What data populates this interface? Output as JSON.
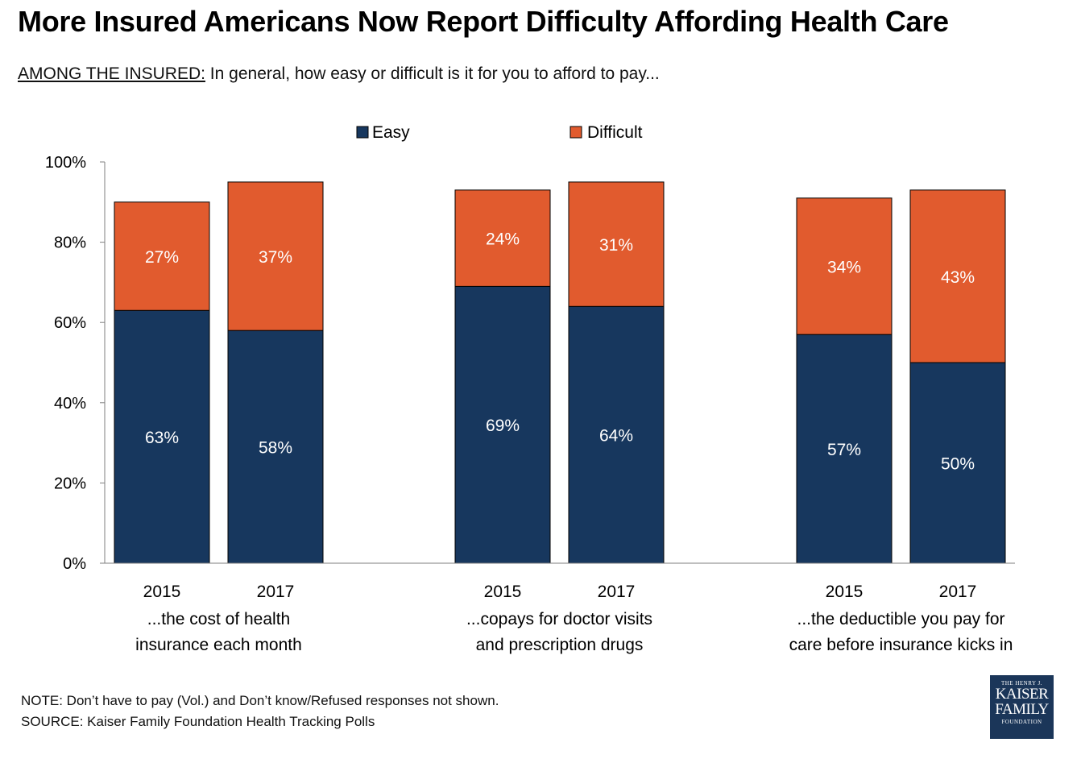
{
  "title": "More Insured Americans Now Report Difficulty Affording Health Care",
  "subtitle_prefix": "AMONG THE INSURED:",
  "subtitle_text": " In general, how easy or difficult is it for you to afford to pay...",
  "note": "NOTE: Don’t have to pay (Vol.) and Don’t know/Refused  responses not shown.",
  "source": "SOURCE: Kaiser Family Foundation  Health Tracking Polls",
  "logo": {
    "line1": "THE HENRY J.",
    "line2": "KAISER",
    "line3": "FAMILY",
    "line4": "FOUNDATION"
  },
  "colors": {
    "easy": "#17375e",
    "difficult": "#e15b2e",
    "axis": "#7f7f7f"
  },
  "chart_data": {
    "type": "bar",
    "stacked": true,
    "ylim": [
      0,
      100
    ],
    "yticks": [
      0,
      20,
      40,
      60,
      80,
      100
    ],
    "ytick_labels": [
      "0%",
      "20%",
      "40%",
      "60%",
      "80%",
      "100%"
    ],
    "legend": [
      "Easy",
      "Difficult"
    ],
    "legend_position": "top-center",
    "groups": [
      {
        "label_lines": [
          "...the cost of health",
          "insurance each month"
        ],
        "bars": [
          {
            "year": "2015",
            "easy": 63,
            "difficult": 27
          },
          {
            "year": "2017",
            "easy": 58,
            "difficult": 37
          }
        ]
      },
      {
        "label_lines": [
          "...copays for doctor visits",
          "and prescription drugs"
        ],
        "bars": [
          {
            "year": "2015",
            "easy": 69,
            "difficult": 24
          },
          {
            "year": "2017",
            "easy": 64,
            "difficult": 31
          }
        ]
      },
      {
        "label_lines": [
          "...the deductible you pay for",
          "care before insurance kicks in"
        ],
        "bars": [
          {
            "year": "2015",
            "easy": 57,
            "difficult": 34
          },
          {
            "year": "2017",
            "easy": 50,
            "difficult": 43
          }
        ]
      }
    ]
  }
}
